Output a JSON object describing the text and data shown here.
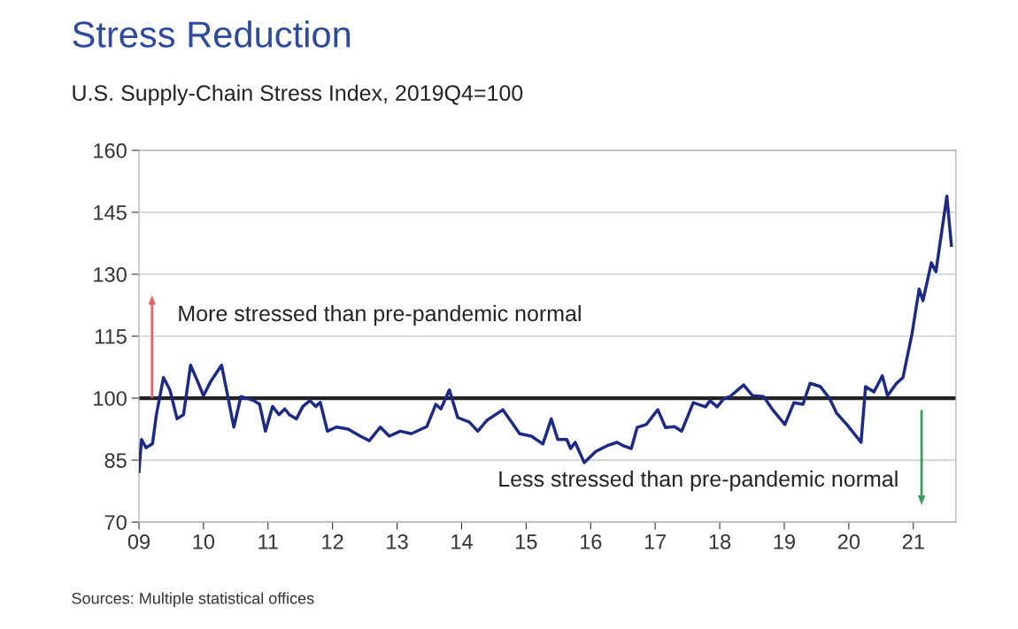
{
  "chart_data": {
    "type": "line",
    "title": "Stress Reduction",
    "subtitle": "U.S. Supply-Chain Stress Index, 2019Q4=100",
    "x": [
      2009.0,
      2009.04,
      2009.11,
      2009.21,
      2009.27,
      2009.38,
      2009.48,
      2009.59,
      2009.69,
      2009.8,
      2009.91,
      2010.0,
      2010.11,
      2010.28,
      2010.37,
      2010.47,
      2010.58,
      2010.78,
      2010.87,
      2010.96,
      2011.07,
      2011.17,
      2011.26,
      2011.33,
      2011.44,
      2011.54,
      2011.65,
      2011.74,
      2011.81,
      2011.92,
      2012.06,
      2012.24,
      2012.43,
      2012.57,
      2012.74,
      2012.88,
      2013.05,
      2013.22,
      2013.46,
      2013.6,
      2013.68,
      2013.81,
      2013.94,
      2014.12,
      2014.25,
      2014.39,
      2014.64,
      2014.9,
      2015.08,
      2015.26,
      2015.39,
      2015.49,
      2015.63,
      2015.69,
      2015.76,
      2015.9,
      2016.08,
      2016.27,
      2016.41,
      2016.49,
      2016.63,
      2016.72,
      2016.86,
      2017.04,
      2017.16,
      2017.3,
      2017.41,
      2017.59,
      2017.78,
      2017.85,
      2017.96,
      2018.07,
      2018.16,
      2018.37,
      2018.51,
      2018.68,
      2018.82,
      2019.01,
      2019.15,
      2019.29,
      2019.4,
      2019.56,
      2019.7,
      2019.81,
      2019.97,
      2020.19,
      2020.26,
      2020.39,
      2020.52,
      2020.6,
      2020.74,
      2020.84,
      2020.98,
      2021.09,
      2021.15,
      2021.28,
      2021.35,
      2021.52,
      2021.59
    ],
    "series": [
      {
        "color": "#1c2a85",
        "values": [
          82.2,
          90,
          88,
          89,
          96,
          105,
          102,
          95,
          96,
          108,
          104,
          100.6,
          104,
          108,
          101,
          93,
          100.4,
          99.4,
          98.5,
          92,
          98,
          96,
          97.4,
          96,
          95,
          98,
          99.4,
          98,
          99,
          92,
          93,
          92.5,
          90.8,
          89.7,
          93,
          90.8,
          92,
          91.4,
          93.1,
          98.5,
          97.4,
          102,
          95.3,
          94.2,
          92,
          94.6,
          97.2,
          91.4,
          90.8,
          88.9,
          95,
          90,
          90,
          87.8,
          89.3,
          84.4,
          87.1,
          88.6,
          89.3,
          88.6,
          87.8,
          92.9,
          93.6,
          97.2,
          92.9,
          93.1,
          92,
          98.9,
          97.9,
          99.4,
          97.9,
          100,
          100.4,
          103.2,
          100.6,
          100.4,
          97.2,
          93.6,
          98.9,
          98.5,
          103.6,
          102.8,
          100,
          96.4,
          93.6,
          89.3,
          102.8,
          101.5,
          105.4,
          100.6,
          103.6,
          105,
          115.6,
          126.4,
          123.6,
          132.8,
          130.6,
          148.9,
          137
        ]
      }
    ],
    "xlim": [
      2009,
      2021.66
    ],
    "ylim": [
      70,
      160
    ],
    "xticks": [
      {
        "value": 2009,
        "label": "09"
      },
      {
        "value": 2010,
        "label": "10"
      },
      {
        "value": 2011,
        "label": "11"
      },
      {
        "value": 2012,
        "label": "12"
      },
      {
        "value": 2013,
        "label": "13"
      },
      {
        "value": 2014,
        "label": "14"
      },
      {
        "value": 2015,
        "label": "15"
      },
      {
        "value": 2016,
        "label": "16"
      },
      {
        "value": 2017,
        "label": "17"
      },
      {
        "value": 2018,
        "label": "18"
      },
      {
        "value": 2019,
        "label": "19"
      },
      {
        "value": 2020,
        "label": "20"
      },
      {
        "value": 2021,
        "label": "21"
      }
    ],
    "yticks": [
      70,
      85,
      100,
      115,
      130,
      145,
      160
    ],
    "grid": "y",
    "legend": false,
    "marker": "none",
    "line_style": "solid",
    "ref_lines": [
      {
        "axis": "y",
        "value": 100,
        "color": "#222222"
      }
    ],
    "annotations": [
      "More stressed than pre-pandemic normal",
      "Less stressed than pre-pandemic normal",
      "Sources: Multiple statistical offices"
    ]
  }
}
